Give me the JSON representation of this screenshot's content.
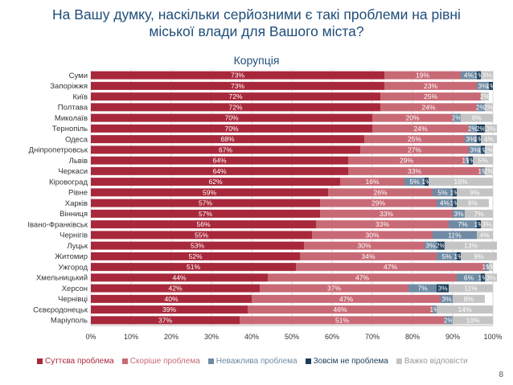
{
  "title_line1": "На Вашу думку, наскільки серйозними є такі проблеми на рівні",
  "title_line2": "міської влади для Вашого міста?",
  "page_number": "8",
  "chart_data": {
    "type": "bar",
    "orientation": "horizontal",
    "stacked": true,
    "title": "Корупція",
    "xlim": [
      0,
      100
    ],
    "xticks": [
      "0%",
      "10%",
      "20%",
      "30%",
      "40%",
      "50%",
      "60%",
      "70%",
      "80%",
      "90%",
      "100%"
    ],
    "colors": [
      "#a8283b",
      "#c86a76",
      "#6f8aa3",
      "#1b3c5a",
      "#c4c4c4"
    ],
    "label_colors": [
      "#ffffff",
      "#ffffff",
      "#ffffff",
      "#ffffff",
      "#ffffff"
    ],
    "categories": [
      "Суми",
      "Запоріжжя",
      "Київ",
      "Полтава",
      "Миколаїв",
      "Тернопіль",
      "Одеса",
      "Дніпропетровськ",
      "Львів",
      "Черкаси",
      "Кіровоград",
      "Рівне",
      "Харків",
      "Вінниця",
      "Івано-Франківськ",
      "Чернігів",
      "Луцьк",
      "Житомир",
      "Ужгород",
      "Хмельницький",
      "Херсон",
      "Чернівці",
      "Сєвєродонецьк",
      "Маріуполь"
    ],
    "series": [
      {
        "name": "Суттєва проблема",
        "values": [
          73,
          73,
          72,
          72,
          70,
          70,
          68,
          67,
          64,
          64,
          62,
          59,
          57,
          57,
          56,
          55,
          53,
          52,
          51,
          44,
          42,
          40,
          39,
          37
        ]
      },
      {
        "name": "Скоріше проблема",
        "values": [
          19,
          23,
          25,
          24,
          20,
          24,
          25,
          27,
          29,
          33,
          16,
          26,
          29,
          33,
          33,
          30,
          30,
          34,
          47,
          47,
          37,
          47,
          46,
          51
        ]
      },
      {
        "name": "Неважлива проблема",
        "values": [
          4,
          3,
          0,
          2,
          2,
          2,
          3,
          3,
          1,
          1,
          5,
          5,
          4,
          3,
          7,
          11,
          3,
          5,
          1,
          6,
          7,
          3,
          1,
          2
        ]
      },
      {
        "name": "Зовсім не проблема",
        "values": [
          1,
          1,
          0,
          0,
          0,
          2,
          1,
          1,
          1,
          0,
          1,
          1,
          1,
          0,
          1,
          0,
          2,
          1,
          0,
          1,
          3,
          0,
          0,
          0
        ]
      },
      {
        "name": "Важко відповісти",
        "values": [
          3,
          0,
          2,
          2,
          8,
          3,
          4,
          2,
          5,
          2,
          16,
          9,
          8,
          7,
          3,
          4,
          13,
          9,
          1,
          3,
          11,
          8,
          14,
          10
        ]
      }
    ]
  }
}
